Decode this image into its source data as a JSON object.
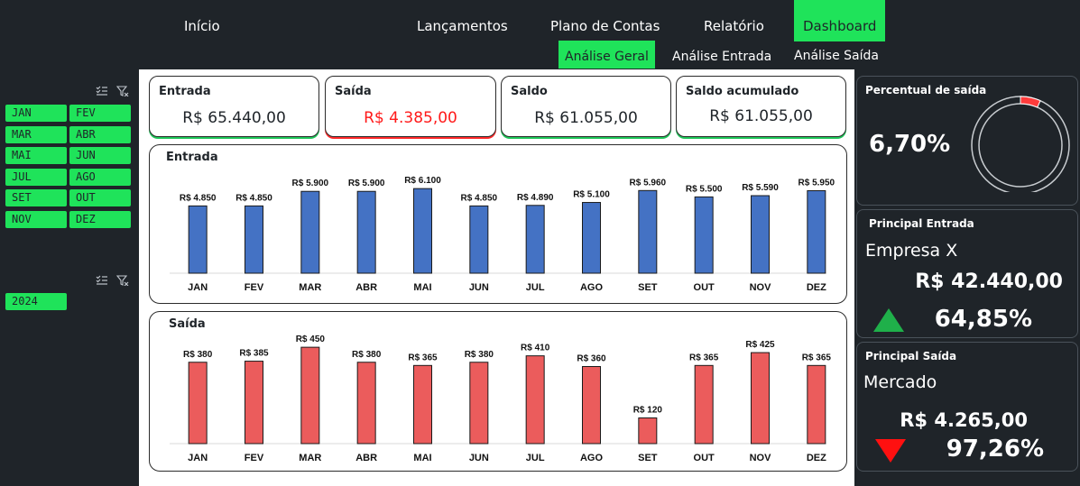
{
  "nav": {
    "items": [
      "Início",
      "Lançamentos",
      "Plano de Contas",
      "Relatório",
      "Dashboard"
    ],
    "active": "Dashboard"
  },
  "subnav": {
    "items": [
      "Análise Geral",
      "Análise Entrada",
      "Análise Saída"
    ],
    "active": "Análise Geral"
  },
  "months": [
    "JAN",
    "FEV",
    "MAR",
    "ABR",
    "MAI",
    "JUN",
    "JUL",
    "AGO",
    "SET",
    "OUT",
    "NOV",
    "DEZ"
  ],
  "years": [
    "2024"
  ],
  "icons": {
    "multi_select": "multi-select-icon",
    "clear_filter": "clear-filter-icon"
  },
  "kpis": [
    {
      "label": "Entrada",
      "value": "R$ 65.440,00"
    },
    {
      "label": "Saída",
      "value": "R$ 4.385,00"
    },
    {
      "label": "Saldo",
      "value": "R$ 61.055,00"
    },
    {
      "label": "Saldo acumulado",
      "value": "R$ 61.055,00"
    }
  ],
  "colors": {
    "accent": "#1fe35a",
    "entrada_bar": "#4472c4",
    "saida_bar": "#eb5c5c",
    "up": "#1fb04a",
    "down": "#ff1010",
    "background": "#1f2429"
  },
  "chart_data": [
    {
      "type": "bar",
      "title": "Entrada",
      "categories": [
        "JAN",
        "FEV",
        "MAR",
        "ABR",
        "MAI",
        "JUN",
        "JUL",
        "AGO",
        "SET",
        "OUT",
        "NOV",
        "DEZ"
      ],
      "values": [
        4850,
        4850,
        5900,
        5900,
        6100,
        4850,
        4890,
        5100,
        5960,
        5500,
        5590,
        5950
      ],
      "labels": [
        "R$ 4.850",
        "R$ 4.850",
        "R$ 5.900",
        "R$ 5.900",
        "R$ 6.100",
        "R$ 4.850",
        "R$ 4.890",
        "R$ 5.100",
        "R$ 5.960",
        "R$ 5.500",
        "R$ 5.590",
        "R$ 5.950"
      ],
      "ylim": [
        0,
        6500
      ],
      "grid": false
    },
    {
      "type": "bar",
      "title": "Saída",
      "categories": [
        "JAN",
        "FEV",
        "MAR",
        "ABR",
        "MAI",
        "JUN",
        "JUL",
        "AGO",
        "SET",
        "OUT",
        "NOV",
        "DEZ"
      ],
      "values": [
        380,
        385,
        450,
        380,
        365,
        380,
        410,
        360,
        120,
        365,
        425,
        365
      ],
      "labels": [
        "R$ 380",
        "R$ 385",
        "R$ 450",
        "R$ 380",
        "R$ 365",
        "R$ 380",
        "R$ 410",
        "R$ 360",
        "R$ 120",
        "R$ 365",
        "R$ 425",
        "R$ 365"
      ],
      "ylim": [
        0,
        480
      ],
      "grid": false
    }
  ],
  "percentual_saida": {
    "title": "Percentual de saída",
    "value_text": "6,70%",
    "fraction": 0.067
  },
  "principal_entrada": {
    "title": "Principal Entrada",
    "name": "Empresa X",
    "value": "R$ 42.440,00",
    "percent": "64,85%",
    "trend": "up"
  },
  "principal_saida": {
    "title": "Principal Saída",
    "name": "Mercado",
    "value": "R$ 4.265,00",
    "percent": "97,26%",
    "trend": "down"
  }
}
